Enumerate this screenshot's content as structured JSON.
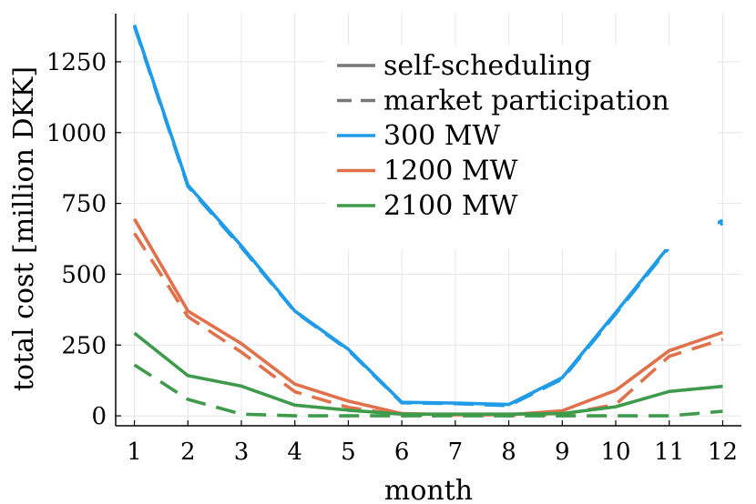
{
  "chart_data": {
    "type": "line",
    "title": "",
    "xlabel": "month",
    "ylabel": "total cost [million DKK]",
    "x": [
      1,
      2,
      3,
      4,
      5,
      6,
      7,
      8,
      9,
      10,
      11,
      12
    ],
    "xlim": [
      0.65,
      12.35
    ],
    "ylim": [
      -35,
      1420
    ],
    "xticks": [
      1,
      2,
      3,
      4,
      5,
      6,
      7,
      8,
      9,
      10,
      11,
      12
    ],
    "yticks": [
      0,
      250,
      500,
      750,
      1000,
      1250
    ],
    "grid": true,
    "legend_position": "top-right",
    "legend": [
      {
        "label": "self-scheduling",
        "color": "#777777",
        "dash": "solid"
      },
      {
        "label": "market participation",
        "color": "#777777",
        "dash": "dashed"
      },
      {
        "label": "300 MW",
        "color": "#1f9be8",
        "dash": "solid"
      },
      {
        "label": "1200 MW",
        "color": "#e0714a",
        "dash": "solid"
      },
      {
        "label": "2100 MW",
        "color": "#3e9b4b",
        "dash": "solid"
      }
    ],
    "series": [
      {
        "name": "300 MW self-scheduling",
        "color": "#1f9be8",
        "dash": "solid",
        "values": [
          1380,
          815,
          600,
          370,
          235,
          48,
          45,
          40,
          135,
          365,
          600,
          690
        ]
      },
      {
        "name": "300 MW market participation",
        "color": "#1f9be8",
        "dash": "dashed",
        "values": [
          1375,
          810,
          595,
          368,
          232,
          46,
          43,
          36,
          130,
          360,
          595,
          680
        ]
      },
      {
        "name": "1200 MW self-scheduling",
        "color": "#e0714a",
        "dash": "solid",
        "values": [
          695,
          370,
          255,
          112,
          52,
          8,
          4,
          4,
          18,
          90,
          230,
          295
        ]
      },
      {
        "name": "1200 MW market participation",
        "color": "#e0714a",
        "dash": "dashed",
        "values": [
          645,
          350,
          225,
          85,
          30,
          3,
          2,
          1,
          5,
          40,
          210,
          270
        ]
      },
      {
        "name": "2100 MW self-scheduling",
        "color": "#3e9b4b",
        "dash": "solid",
        "values": [
          292,
          142,
          105,
          38,
          20,
          6,
          6,
          6,
          8,
          32,
          86,
          104
        ]
      },
      {
        "name": "2100 MW market participation",
        "color": "#3e9b4b",
        "dash": "dashed",
        "values": [
          180,
          58,
          6,
          0,
          0,
          0,
          0,
          0,
          0,
          0,
          0,
          16
        ]
      }
    ]
  }
}
